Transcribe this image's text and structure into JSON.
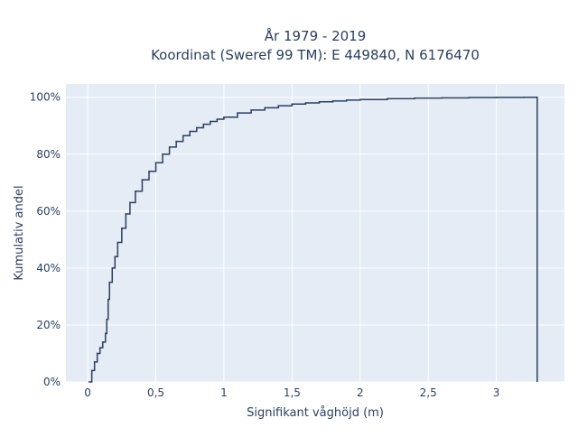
{
  "chart_data": {
    "type": "line",
    "subtype": "empirical-cdf-step",
    "title_lines": [
      "År 1979 - 2019",
      "Koordinat (Sweref 99 TM): E 449840, N 6176470"
    ],
    "xlabel": "Signifikant våghöjd (m)",
    "ylabel": "Kumulativ andel",
    "xlim": [
      -0.16,
      3.5
    ],
    "ylim": [
      0,
      1.0467
    ],
    "x_ticks": [
      0,
      0.5,
      1,
      1.5,
      2,
      2.5,
      3
    ],
    "x_tick_labels": [
      "0",
      "0,5",
      "1",
      "1,5",
      "2",
      "2,5",
      "3"
    ],
    "y_ticks": [
      0,
      0.2,
      0.4,
      0.6,
      0.8,
      1.0
    ],
    "y_tick_labels": [
      "0%",
      "20%",
      "40%",
      "60%",
      "80%",
      "100%"
    ],
    "grid": true,
    "background": "#e5ecf6",
    "grid_color": "#ffffff",
    "line_color": "#2a3f5f",
    "series": [
      {
        "x": [
          0.01,
          0.03,
          0.05,
          0.07,
          0.09,
          0.11,
          0.13,
          0.14,
          0.15,
          0.16,
          0.18,
          0.2,
          0.22,
          0.25,
          0.28,
          0.31,
          0.35,
          0.4,
          0.45,
          0.5,
          0.55,
          0.6,
          0.65,
          0.7,
          0.75,
          0.8,
          0.85,
          0.9,
          0.95,
          1.0,
          1.1,
          1.2,
          1.3,
          1.4,
          1.5,
          1.6,
          1.7,
          1.8,
          1.9,
          2.0,
          2.2,
          2.4,
          2.6,
          2.8,
          3.0,
          3.2,
          3.3
        ],
        "y": [
          0.0,
          0.04,
          0.07,
          0.1,
          0.12,
          0.14,
          0.17,
          0.22,
          0.29,
          0.35,
          0.4,
          0.44,
          0.49,
          0.54,
          0.59,
          0.63,
          0.67,
          0.71,
          0.74,
          0.77,
          0.8,
          0.825,
          0.845,
          0.865,
          0.88,
          0.893,
          0.905,
          0.915,
          0.923,
          0.93,
          0.945,
          0.955,
          0.963,
          0.97,
          0.976,
          0.98,
          0.984,
          0.987,
          0.99,
          0.992,
          0.995,
          0.997,
          0.998,
          0.999,
          0.9995,
          1.0,
          1.0
        ],
        "drop_to_zero_at": 3.3
      }
    ]
  }
}
